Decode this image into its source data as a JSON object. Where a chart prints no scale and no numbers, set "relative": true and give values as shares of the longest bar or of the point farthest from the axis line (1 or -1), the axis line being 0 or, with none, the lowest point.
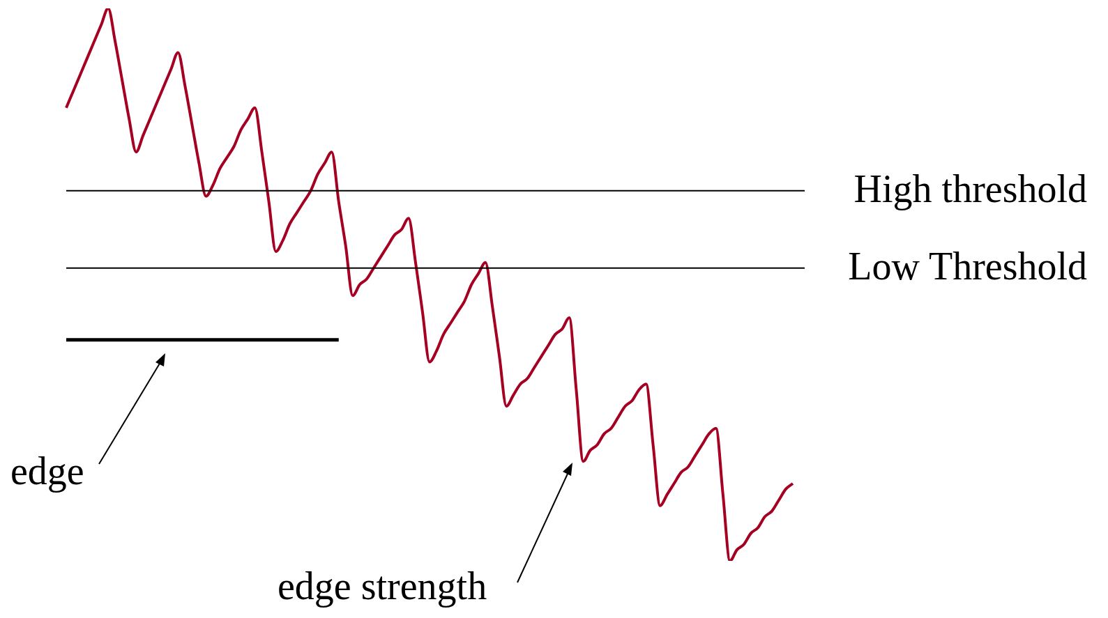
{
  "chart_data": {
    "type": "line",
    "relative": true,
    "legend": false,
    "grid": false,
    "tick_labels": false,
    "marker": "none",
    "line_style": "solid",
    "categories": [
      null,
      null,
      null,
      null,
      null,
      null,
      null,
      null,
      null,
      null,
      null,
      null,
      null,
      null,
      null,
      null,
      null,
      null,
      null,
      null,
      null,
      null,
      null,
      null,
      null,
      null,
      null,
      null,
      null,
      null,
      null,
      null,
      null,
      null,
      null,
      null,
      null,
      null,
      null,
      null,
      null,
      null,
      null,
      null,
      null,
      null,
      null,
      null,
      null,
      null,
      null,
      null,
      null,
      null,
      null,
      null,
      null,
      null,
      null,
      null,
      null,
      null,
      null,
      null,
      null,
      null,
      null,
      null,
      null,
      null,
      null,
      null,
      null,
      null,
      null,
      null,
      null,
      null,
      null,
      null,
      null,
      null,
      null,
      null,
      null,
      null,
      null,
      null,
      null,
      null,
      null,
      null,
      null,
      null,
      null,
      null,
      null,
      null,
      null,
      null,
      null,
      null,
      null,
      null,
      null
    ],
    "series": [
      {
        "color": "#a50021",
        "values": [
          0.82,
          0.85,
          0.88,
          0.91,
          0.94,
          0.97,
          1.0,
          0.94,
          0.87,
          0.8,
          0.74,
          0.77,
          0.8,
          0.83,
          0.86,
          0.89,
          0.92,
          0.86,
          0.79,
          0.72,
          0.66,
          0.68,
          0.71,
          0.73,
          0.75,
          0.78,
          0.8,
          0.82,
          0.74,
          0.65,
          0.56,
          0.58,
          0.61,
          0.63,
          0.65,
          0.67,
          0.7,
          0.72,
          0.74,
          0.65,
          0.57,
          0.48,
          0.5,
          0.51,
          0.53,
          0.55,
          0.57,
          0.59,
          0.6,
          0.62,
          0.54,
          0.45,
          0.36,
          0.38,
          0.41,
          0.43,
          0.45,
          0.47,
          0.5,
          0.52,
          0.54,
          0.46,
          0.37,
          0.28,
          0.3,
          0.32,
          0.33,
          0.35,
          0.37,
          0.39,
          0.41,
          0.42,
          0.44,
          0.31,
          0.18,
          0.2,
          0.21,
          0.23,
          0.24,
          0.26,
          0.28,
          0.29,
          0.31,
          0.32,
          0.21,
          0.1,
          0.12,
          0.14,
          0.16,
          0.17,
          0.19,
          0.21,
          0.23,
          0.24,
          0.12,
          0.0,
          0.02,
          0.03,
          0.05,
          0.06,
          0.08,
          0.09,
          0.11,
          0.13,
          0.14
        ]
      },
      {
        "color": "#000000",
        "values": [
          0.4,
          0.4,
          0.4,
          0.4,
          0.4,
          0.4,
          0.4,
          0.4,
          0.4,
          0.4,
          0.4,
          0.4,
          0.4,
          0.4,
          0.4,
          0.4,
          0.4,
          0.4,
          0.4,
          0.4,
          0.4,
          0.4,
          0.4,
          0.4,
          0.4,
          0.4,
          0.4,
          0.4,
          0.4,
          0.4,
          0.4,
          0.4,
          0.4,
          0.4,
          0.4,
          0.4,
          0.4,
          0.4,
          0.4,
          0.4,
          null,
          null,
          null,
          null,
          null,
          null,
          null,
          null,
          null,
          null,
          null,
          null,
          null,
          null,
          null,
          null,
          null,
          null,
          null,
          null,
          null,
          null,
          null,
          null,
          null,
          null,
          null,
          null,
          null,
          null,
          null,
          null,
          null,
          null,
          null,
          null,
          null,
          null,
          null,
          null,
          null,
          null,
          null,
          null,
          null,
          null,
          null,
          null,
          null,
          null,
          null,
          null,
          null,
          null,
          null,
          null,
          null,
          null,
          null,
          null,
          null,
          null,
          null,
          null,
          null
        ]
      }
    ],
    "ref_lines": [
      {
        "axis": "y",
        "value": 0.67,
        "label": "High threshold",
        "color": "#000000"
      },
      {
        "axis": "y",
        "value": 0.53,
        "label": "Low Threshold",
        "color": "#000000"
      }
    ],
    "annotations": [
      "edge",
      "edge strength"
    ]
  }
}
